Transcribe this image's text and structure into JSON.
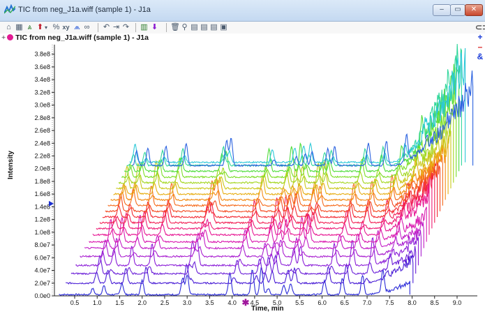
{
  "window": {
    "title": "TIC from neg_J1a.wiff (sample 1) - J1a",
    "minimize_label": "–",
    "maximize_label": "▭",
    "close_label": "✕"
  },
  "toolbar": {
    "percent_label": "%",
    "icons": [
      "home-icon",
      "table-icon",
      "peak-label-icon",
      "arrow-up-icon",
      "dropdown-arrow-icon",
      "percent-icon",
      "scale-xy-icon",
      "peak-icon",
      "glasses-icon",
      "undo-icon",
      "redo-icon",
      "forward-icon",
      "redo-back-icon",
      "histogram-icon",
      "marker-icon",
      "delete-icon",
      "zoom-icon",
      "grid1-icon",
      "grid2-icon",
      "grid3-icon",
      "layout-icon"
    ]
  },
  "legend": {
    "plus": "+",
    "label": "TIC from neg_J1a.wiff (sample 1) - J1a",
    "color": "#e21b93"
  },
  "side_tools": [
    "+",
    "–",
    "&"
  ],
  "chart_data": {
    "type": "line",
    "xlabel": "Time, min",
    "ylabel": "Intensity",
    "xlim": [
      0.05,
      9.45
    ],
    "ylim": [
      0,
      395000000.0
    ],
    "x_ticks": [
      "0.5",
      "1.0",
      "1.5",
      "2.0",
      "2.5",
      "3.0",
      "3.5",
      "4.0",
      "4.5",
      "5.0",
      "5.5",
      "6.0",
      "6.5",
      "7.0",
      "7.5",
      "8.0",
      "8.5",
      "9.0"
    ],
    "y_ticks": [
      "0.0e0",
      "2.0e7",
      "4.0e7",
      "6.0e7",
      "8.0e7",
      "1.0e8",
      "1.2e8",
      "1.4e8",
      "1.6e8",
      "1.8e8",
      "2.0e8",
      "2.2e8",
      "2.4e8",
      "2.6e8",
      "2.8e8",
      "3.0e8",
      "3.2e8",
      "3.4e8",
      "3.6e8",
      "3.8e8"
    ],
    "layout": "waterfall",
    "trace_count": 22,
    "trace_colors": [
      "#2a2ad8",
      "#4b1fd6",
      "#6a1ed8",
      "#8b1ed8",
      "#a91ed0",
      "#c21dc6",
      "#d91ab0",
      "#e71994",
      "#ee1c74",
      "#f22054",
      "#f32a33",
      "#f44820",
      "#f56a1a",
      "#f48b14",
      "#e7ad12",
      "#c9c81a",
      "#a3d61e",
      "#7bde27",
      "#4fdc3a",
      "#2fd69b",
      "#2dc8d8",
      "#2b62e0"
    ],
    "trace_x_start": [
      0.15,
      0.3,
      0.42,
      0.52,
      0.62,
      0.72,
      0.82,
      0.9,
      0.98,
      1.06,
      1.12,
      1.18,
      1.24,
      1.3,
      1.36,
      1.42,
      1.48,
      1.54,
      1.6,
      1.66,
      1.72,
      1.78
    ],
    "trace_x_end": [
      7.95,
      8.02,
      8.08,
      8.14,
      8.2,
      8.26,
      8.32,
      8.38,
      8.44,
      8.5,
      8.56,
      8.62,
      8.68,
      8.74,
      8.8,
      8.86,
      8.92,
      8.98,
      9.04,
      9.1,
      9.18,
      9.35
    ],
    "trace_baseline": [
      2000000.0,
      20000000.0,
      35000000.0,
      48000000.0,
      62000000.0,
      75000000.0,
      85000000.0,
      96000000.0,
      106000000.0,
      115000000.0,
      124000000.0,
      133000000.0,
      142000000.0,
      151000000.0,
      160000000.0,
      169000000.0,
      178000000.0,
      187000000.0,
      196000000.0,
      205000000.0,
      210000000.0,
      205000000.0
    ],
    "trace_end_value": [
      20000000.0,
      60000000.0,
      70000000.0,
      90000000.0,
      100000000.0,
      110000000.0,
      130000000.0,
      160000000.0,
      180000000.0,
      190000000.0,
      200000000.0,
      210000000.0,
      220000000.0,
      230000000.0,
      240000000.0,
      260000000.0,
      280000000.0,
      320000000.0,
      350000000.0,
      380000000.0,
      370000000.0,
      330000000.0
    ],
    "peak_times": [
      1.05,
      1.3,
      1.7,
      2.15,
      3.05,
      3.15,
      4.1,
      4.6,
      4.8,
      4.95,
      5.3,
      5.45,
      6.2,
      6.6,
      7.05,
      7.5
    ],
    "marker_label": "✱",
    "marker_x": 4.3,
    "arrow_marker_y": 145000000.0
  }
}
